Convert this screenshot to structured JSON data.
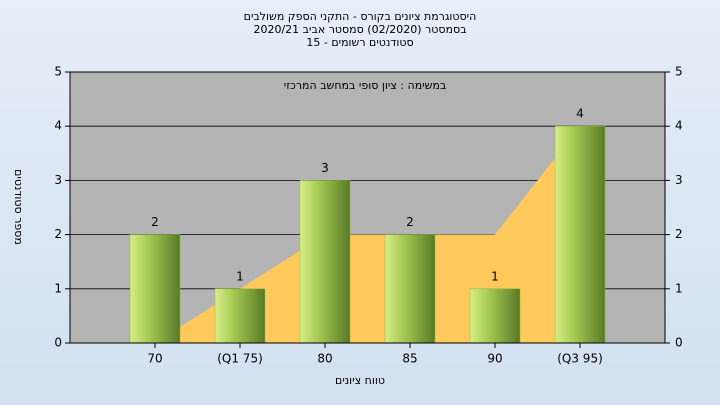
{
  "chart_data": {
    "type": "bar",
    "title": "היסטוגרמת ציונים בקורס - התקני הספק משולבים",
    "subtitle": "בסמסטר  (02/2020)  סמסטר אביב 2020/21",
    "subtitle2": "סטודנטים רשומים - 15",
    "annotation": "במשימה : ציון סופי במחשב המרכזי",
    "x_label": "טווח ציונים",
    "y_label": "מספר סטודנטים",
    "categories": [
      "70",
      "(Q1 75)",
      "80",
      "85",
      "90",
      "(Q3 95)"
    ],
    "series": [
      {
        "type": "area",
        "color": "#ffc95c",
        "values": [
          0,
          1,
          2,
          2,
          2,
          4
        ]
      },
      {
        "type": "bar",
        "color": "#8fb83a",
        "values": [
          2,
          1,
          3,
          2,
          1,
          4
        ]
      }
    ],
    "ylim": [
      0,
      5
    ],
    "yticks": [
      0,
      1,
      2,
      3,
      4,
      5
    ],
    "y2lim": [
      0,
      5
    ],
    "y2ticks": [
      0,
      1,
      2,
      3,
      4,
      5
    ],
    "grid": true
  }
}
